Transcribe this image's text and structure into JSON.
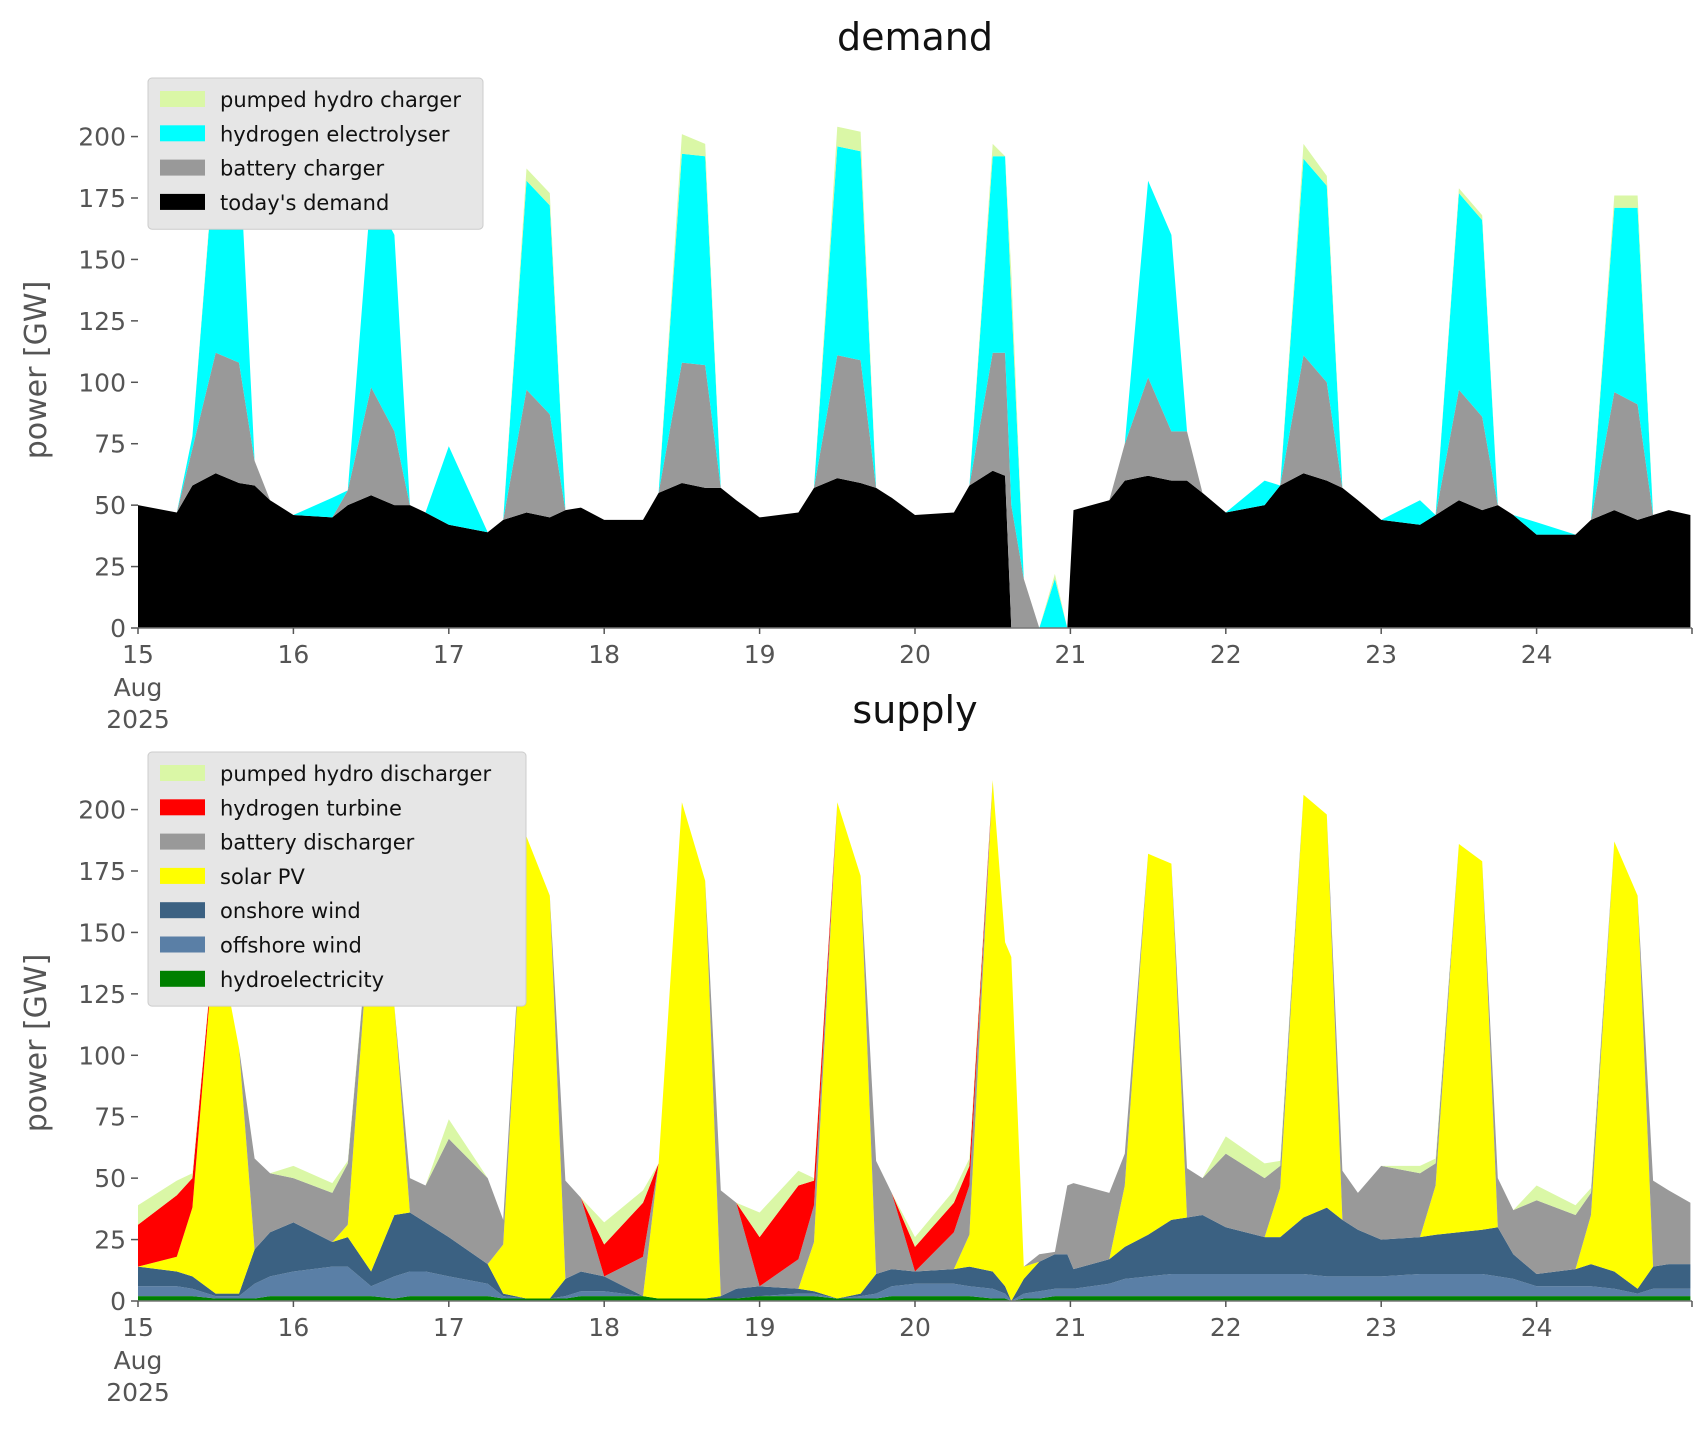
{
  "chart_data": [
    {
      "type": "area",
      "stacked": true,
      "title": "demand",
      "ylabel": "power [GW]",
      "xlabel": "",
      "ylim": [
        0,
        210
      ],
      "yticks": [
        0,
        25,
        50,
        75,
        100,
        125,
        150,
        175,
        200
      ],
      "xlim": [
        15,
        25
      ],
      "xticks": [
        15,
        16,
        17,
        18,
        19,
        20,
        21,
        22,
        23,
        24
      ],
      "xtick_labels": [
        "15",
        "16",
        "17",
        "18",
        "19",
        "20",
        "21",
        "22",
        "23",
        "24"
      ],
      "xtick_sublabel": [
        "Aug",
        "2025"
      ],
      "x_unit": "day of August 2025",
      "grid": false,
      "legend_position": "top-left",
      "x": [
        15.0,
        15.25,
        15.35,
        15.5,
        15.65,
        15.75,
        15.85,
        16.0,
        16.25,
        16.35,
        16.5,
        16.65,
        16.75,
        16.85,
        17.0,
        17.25,
        17.35,
        17.5,
        17.65,
        17.75,
        17.85,
        18.0,
        18.25,
        18.35,
        18.5,
        18.65,
        18.75,
        18.85,
        19.0,
        19.25,
        19.35,
        19.5,
        19.65,
        19.75,
        19.85,
        20.0,
        20.25,
        20.35,
        20.5,
        20.58,
        20.62,
        20.7,
        20.8,
        20.9,
        20.98,
        21.02,
        21.25,
        21.35,
        21.5,
        21.65,
        21.75,
        21.85,
        22.0,
        22.25,
        22.35,
        22.5,
        22.65,
        22.75,
        22.85,
        23.0,
        23.25,
        23.35,
        23.5,
        23.65,
        23.75,
        23.85,
        24.0,
        24.25,
        24.35,
        24.5,
        24.65,
        24.75,
        24.85,
        24.99
      ],
      "series": [
        {
          "name": "today's demand",
          "color": "#000000",
          "values": [
            50,
            47,
            58,
            63,
            59,
            58,
            52,
            46,
            45,
            50,
            54,
            50,
            50,
            47,
            42,
            39,
            44,
            47,
            45,
            48,
            49,
            44,
            44,
            55,
            59,
            57,
            57,
            52,
            45,
            47,
            57,
            61,
            59,
            57,
            53,
            46,
            47,
            58,
            64,
            62,
            0,
            0,
            0,
            0,
            0,
            48,
            52,
            60,
            62,
            60,
            60,
            55,
            47,
            50,
            58,
            63,
            60,
            57,
            52,
            44,
            42,
            46,
            52,
            48,
            50,
            46,
            38,
            38,
            44,
            48,
            44,
            46,
            48,
            46
          ]
        },
        {
          "name": "battery charger",
          "color": "#999999",
          "values": [
            0,
            0,
            15,
            49,
            49,
            10,
            0,
            0,
            0,
            6,
            44,
            30,
            0,
            0,
            0,
            0,
            0,
            50,
            42,
            0,
            0,
            0,
            0,
            0,
            49,
            50,
            0,
            0,
            0,
            0,
            0,
            50,
            50,
            0,
            0,
            0,
            0,
            0,
            48,
            50,
            50,
            20,
            0,
            0,
            0,
            0,
            0,
            15,
            40,
            20,
            20,
            0,
            0,
            0,
            0,
            48,
            40,
            0,
            0,
            0,
            0,
            0,
            45,
            38,
            0,
            0,
            0,
            0,
            0,
            48,
            47,
            0,
            0,
            0
          ]
        },
        {
          "name": "hydrogen electrolyser",
          "color": "#00ffff",
          "values": [
            0,
            0,
            5,
            85,
            90,
            0,
            0,
            0,
            8,
            0,
            80,
            80,
            0,
            0,
            32,
            0,
            0,
            85,
            85,
            0,
            0,
            0,
            0,
            0,
            85,
            85,
            0,
            0,
            0,
            0,
            0,
            85,
            85,
            0,
            0,
            0,
            0,
            0,
            80,
            80,
            85,
            0,
            0,
            20,
            0,
            0,
            0,
            0,
            80,
            80,
            0,
            0,
            0,
            10,
            0,
            80,
            80,
            0,
            0,
            0,
            10,
            0,
            80,
            80,
            0,
            0,
            5,
            0,
            0,
            75,
            80,
            0,
            0,
            0
          ]
        },
        {
          "name": "pumped hydro charger",
          "color": "#daf7a6",
          "values": [
            0,
            0,
            0,
            2,
            0,
            0,
            0,
            0,
            0,
            0,
            0,
            0,
            0,
            0,
            0,
            0,
            0,
            5,
            5,
            0,
            0,
            0,
            0,
            0,
            8,
            5,
            0,
            0,
            0,
            0,
            0,
            8,
            8,
            0,
            0,
            0,
            0,
            0,
            5,
            0,
            10,
            0,
            0,
            2,
            0,
            0,
            0,
            0,
            0,
            0,
            0,
            0,
            0,
            0,
            0,
            6,
            4,
            0,
            0,
            0,
            0,
            0,
            2,
            2,
            0,
            0,
            0,
            0,
            0,
            5,
            5,
            0,
            0,
            0
          ]
        }
      ]
    },
    {
      "type": "area",
      "stacked": true,
      "title": "supply",
      "ylabel": "power [GW]",
      "xlabel": "",
      "ylim": [
        0,
        210
      ],
      "yticks": [
        0,
        25,
        50,
        75,
        100,
        125,
        150,
        175,
        200
      ],
      "xlim": [
        15,
        25
      ],
      "xticks": [
        15,
        16,
        17,
        18,
        19,
        20,
        21,
        22,
        23,
        24
      ],
      "xtick_labels": [
        "15",
        "16",
        "17",
        "18",
        "19",
        "20",
        "21",
        "22",
        "23",
        "24"
      ],
      "xtick_sublabel": [
        "Aug",
        "2025"
      ],
      "x_unit": "day of August 2025",
      "grid": false,
      "legend_position": "top-left",
      "x": [
        15.0,
        15.25,
        15.35,
        15.5,
        15.65,
        15.75,
        15.85,
        16.0,
        16.25,
        16.35,
        16.5,
        16.65,
        16.75,
        16.85,
        17.0,
        17.25,
        17.35,
        17.5,
        17.65,
        17.75,
        17.85,
        18.0,
        18.25,
        18.35,
        18.5,
        18.65,
        18.75,
        18.85,
        19.0,
        19.25,
        19.35,
        19.5,
        19.65,
        19.75,
        19.85,
        20.0,
        20.25,
        20.35,
        20.5,
        20.58,
        20.62,
        20.7,
        20.8,
        20.9,
        20.98,
        21.02,
        21.25,
        21.35,
        21.5,
        21.65,
        21.75,
        21.85,
        22.0,
        22.25,
        22.35,
        22.5,
        22.65,
        22.75,
        22.85,
        23.0,
        23.25,
        23.35,
        23.5,
        23.65,
        23.75,
        23.85,
        24.0,
        24.25,
        24.35,
        24.5,
        24.65,
        24.75,
        24.85,
        24.99
      ],
      "series": [
        {
          "name": "hydroelectricity",
          "color": "#008000",
          "values": [
            2,
            2,
            2,
            1,
            1,
            1,
            2,
            2,
            2,
            2,
            2,
            1,
            2,
            2,
            2,
            2,
            1,
            1,
            1,
            1,
            2,
            2,
            2,
            1,
            1,
            1,
            1,
            1,
            2,
            2,
            2,
            1,
            1,
            1,
            2,
            2,
            2,
            2,
            1,
            1,
            0,
            1,
            1,
            2,
            2,
            2,
            2,
            2,
            2,
            2,
            2,
            2,
            2,
            2,
            2,
            2,
            2,
            2,
            2,
            2,
            2,
            2,
            2,
            2,
            2,
            2,
            2,
            2,
            2,
            2,
            2,
            2,
            2,
            2
          ]
        },
        {
          "name": "offshore wind",
          "color": "#5a7fa6",
          "values": [
            4,
            4,
            3,
            1,
            1,
            6,
            8,
            10,
            12,
            12,
            4,
            9,
            10,
            10,
            8,
            5,
            1,
            0,
            0,
            1,
            2,
            2,
            0,
            0,
            0,
            0,
            0,
            0,
            0,
            1,
            1,
            0,
            1,
            2,
            4,
            5,
            5,
            4,
            4,
            2,
            0,
            2,
            3,
            3,
            3,
            3,
            5,
            7,
            8,
            9,
            9,
            9,
            9,
            9,
            9,
            9,
            8,
            8,
            8,
            8,
            9,
            9,
            9,
            9,
            8,
            7,
            4,
            4,
            4,
            3,
            1,
            3,
            3,
            3
          ]
        },
        {
          "name": "onshore wind",
          "color": "#3b6182",
          "values": [
            8,
            6,
            5,
            1,
            1,
            14,
            18,
            20,
            10,
            12,
            6,
            25,
            24,
            20,
            16,
            8,
            1,
            0,
            0,
            7,
            8,
            6,
            0,
            0,
            0,
            0,
            1,
            4,
            4,
            2,
            1,
            0,
            1,
            8,
            7,
            5,
            6,
            8,
            7,
            3,
            0,
            6,
            12,
            14,
            14,
            8,
            10,
            13,
            17,
            22,
            23,
            24,
            19,
            15,
            15,
            23,
            28,
            23,
            19,
            15,
            15,
            16,
            17,
            18,
            20,
            10,
            5,
            7,
            9,
            7,
            2,
            9,
            10,
            10
          ]
        },
        {
          "name": "solar PV",
          "color": "#ffff00",
          "values": [
            0,
            6,
            28,
            150,
            100,
            0,
            0,
            0,
            0,
            5,
            150,
            85,
            0,
            0,
            0,
            0,
            20,
            188,
            164,
            0,
            0,
            0,
            0,
            55,
            202,
            170,
            0,
            0,
            0,
            0,
            20,
            202,
            170,
            0,
            0,
            0,
            0,
            13,
            200,
            140,
            140,
            5,
            0,
            0,
            0,
            0,
            0,
            25,
            155,
            145,
            0,
            0,
            0,
            0,
            20,
            172,
            160,
            0,
            0,
            0,
            0,
            20,
            158,
            150,
            0,
            0,
            0,
            0,
            20,
            175,
            160,
            0,
            0,
            0
          ]
        },
        {
          "name": "battery discharger",
          "color": "#999999",
          "values": [
            0,
            0,
            0,
            0,
            0,
            37,
            24,
            18,
            20,
            25,
            0,
            0,
            14,
            15,
            40,
            35,
            10,
            0,
            0,
            40,
            30,
            0,
            16,
            0,
            0,
            0,
            43,
            35,
            0,
            12,
            15,
            0,
            0,
            46,
            31,
            0,
            15,
            20,
            0,
            0,
            0,
            0,
            3,
            1,
            28,
            35,
            27,
            13,
            0,
            0,
            20,
            15,
            30,
            24,
            9,
            0,
            0,
            20,
            15,
            30,
            26,
            9,
            0,
            0,
            20,
            18,
            30,
            22,
            9,
            0,
            0,
            35,
            30,
            25
          ]
        },
        {
          "name": "hydrogen turbine",
          "color": "#ff0000",
          "values": [
            17,
            25,
            12,
            0,
            0,
            0,
            0,
            0,
            0,
            0,
            0,
            0,
            0,
            0,
            0,
            0,
            0,
            0,
            0,
            0,
            0,
            13,
            22,
            0,
            0,
            0,
            0,
            0,
            20,
            30,
            10,
            0,
            0,
            0,
            0,
            10,
            12,
            8,
            0,
            0,
            0,
            0,
            0,
            0,
            0,
            0,
            0,
            0,
            0,
            0,
            0,
            0,
            0,
            0,
            0,
            0,
            0,
            0,
            0,
            0,
            0,
            0,
            0,
            0,
            0,
            0,
            0,
            0,
            0,
            0,
            0,
            0,
            0,
            0
          ]
        },
        {
          "name": "pumped hydro discharger",
          "color": "#daf7a6",
          "values": [
            8,
            6,
            2,
            0,
            0,
            0,
            0,
            5,
            4,
            1,
            0,
            0,
            0,
            0,
            8,
            0,
            0,
            0,
            0,
            0,
            0,
            9,
            5,
            0,
            0,
            0,
            0,
            0,
            10,
            6,
            1,
            0,
            0,
            0,
            0,
            4,
            5,
            3,
            0,
            0,
            0,
            0,
            0,
            0,
            0,
            0,
            0,
            0,
            0,
            0,
            0,
            0,
            7,
            6,
            2,
            0,
            0,
            0,
            0,
            0,
            3,
            2,
            0,
            0,
            0,
            0,
            6,
            4,
            2,
            0,
            0,
            0,
            0,
            0
          ]
        }
      ]
    }
  ]
}
